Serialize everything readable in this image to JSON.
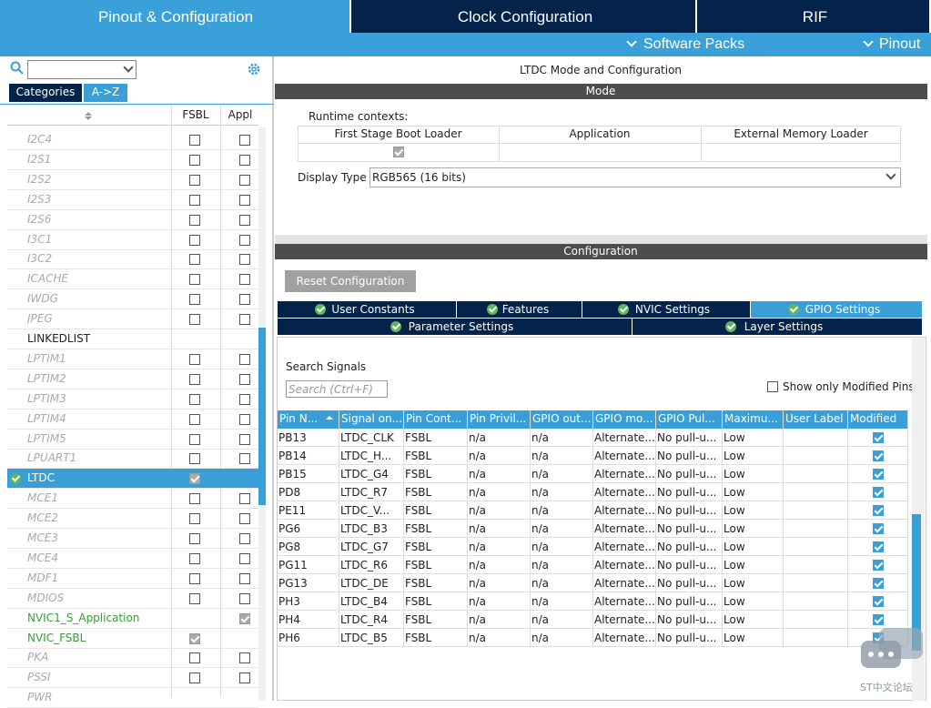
{
  "top_tabs": [
    "Pinout & Configuration",
    "Clock Configuration",
    "RIF"
  ],
  "sub_menu": [
    "Software Packs",
    "Pinout"
  ],
  "left_panel": {
    "tabs": [
      "Categories",
      "A->Z"
    ],
    "columns": [
      "FSBL",
      "Appl"
    ],
    "items": [
      {
        "name": "I2C4",
        "state": "disabled",
        "fsbl": false,
        "appl": false
      },
      {
        "name": "I2S1",
        "state": "disabled",
        "fsbl": false,
        "appl": false
      },
      {
        "name": "I2S2",
        "state": "disabled",
        "fsbl": false,
        "appl": false
      },
      {
        "name": "I2S3",
        "state": "disabled",
        "fsbl": false,
        "appl": false
      },
      {
        "name": "I2S6",
        "state": "disabled",
        "fsbl": false,
        "appl": false
      },
      {
        "name": "I3C1",
        "state": "disabled",
        "fsbl": false,
        "appl": false
      },
      {
        "name": "I3C2",
        "state": "disabled",
        "fsbl": false,
        "appl": false
      },
      {
        "name": "ICACHE",
        "state": "disabled",
        "fsbl": false,
        "appl": false
      },
      {
        "name": "IWDG",
        "state": "disabled",
        "fsbl": false,
        "appl": false
      },
      {
        "name": "JPEG",
        "state": "disabled",
        "fsbl": false,
        "appl": false
      },
      {
        "name": "LINKEDLIST",
        "state": "normal",
        "fsbl": null,
        "appl": null
      },
      {
        "name": "LPTIM1",
        "state": "disabled",
        "fsbl": false,
        "appl": false
      },
      {
        "name": "LPTIM2",
        "state": "disabled",
        "fsbl": false,
        "appl": false
      },
      {
        "name": "LPTIM3",
        "state": "disabled",
        "fsbl": false,
        "appl": false
      },
      {
        "name": "LPTIM4",
        "state": "disabled",
        "fsbl": false,
        "appl": false
      },
      {
        "name": "LPTIM5",
        "state": "disabled",
        "fsbl": false,
        "appl": false
      },
      {
        "name": "LPUART1",
        "state": "disabled",
        "fsbl": false,
        "appl": false
      },
      {
        "name": "LTDC",
        "state": "selected",
        "fsbl": true,
        "appl": null
      },
      {
        "name": "MCE1",
        "state": "disabled",
        "fsbl": false,
        "appl": false
      },
      {
        "name": "MCE2",
        "state": "disabled",
        "fsbl": false,
        "appl": false
      },
      {
        "name": "MCE3",
        "state": "disabled",
        "fsbl": false,
        "appl": false
      },
      {
        "name": "MCE4",
        "state": "disabled",
        "fsbl": false,
        "appl": false
      },
      {
        "name": "MDF1",
        "state": "disabled",
        "fsbl": false,
        "appl": false
      },
      {
        "name": "MDIOS",
        "state": "disabled",
        "fsbl": false,
        "appl": false
      },
      {
        "name": "NVIC1_S_Application",
        "state": "enabled",
        "fsbl": null,
        "appl": true
      },
      {
        "name": "NVIC_FSBL",
        "state": "enabled",
        "fsbl": true,
        "appl": null
      },
      {
        "name": "PKA",
        "state": "disabled",
        "fsbl": false,
        "appl": false
      },
      {
        "name": "PSSI",
        "state": "disabled",
        "fsbl": false,
        "appl": false
      },
      {
        "name": "PWR",
        "state": "disabled",
        "fsbl": null,
        "appl": null
      }
    ]
  },
  "right_panel": {
    "title": "LTDC Mode and Configuration",
    "mode_header": "Mode",
    "runtime_label": "Runtime contexts:",
    "contexts": [
      {
        "name": "First Stage Boot Loader",
        "checked": true
      },
      {
        "name": "Application",
        "checked": null
      },
      {
        "name": "External Memory Loader",
        "checked": null
      }
    ],
    "display_type_label": "Display Type",
    "display_type_value": "RGB565 (16 bits)",
    "config_header": "Configuration",
    "reset_button": "Reset Configuration",
    "tabs": [
      [
        {
          "label": "User Constants",
          "active": false
        },
        {
          "label": "Features",
          "active": false
        },
        {
          "label": "NVIC Settings",
          "active": false
        },
        {
          "label": "GPIO Settings",
          "active": true
        }
      ],
      [
        {
          "label": "Parameter Settings",
          "active": false
        },
        {
          "label": "Layer Settings",
          "active": false
        }
      ]
    ],
    "search_label": "Search Signals",
    "search_placeholder": "Search (Ctrl+F)",
    "modified_only_label": "Show only Modified Pins",
    "table": {
      "headers": [
        "Pin N...",
        "Signal on...",
        "Pin Cont...",
        "Pin Privil...",
        "GPIO out...",
        "GPIO mo...",
        "GPIO Pul...",
        "Maximu...",
        "User Label",
        "Modified"
      ],
      "rows": [
        {
          "cells": [
            "PB13",
            "LTDC_CLK",
            "FSBL",
            "n/a",
            "n/a",
            "Alternate...",
            "No pull-u...",
            "Low",
            ""
          ],
          "modified": true
        },
        {
          "cells": [
            "PB14",
            "LTDC_H...",
            "FSBL",
            "n/a",
            "n/a",
            "Alternate...",
            "No pull-u...",
            "Low",
            ""
          ],
          "modified": true
        },
        {
          "cells": [
            "PB15",
            "LTDC_G4",
            "FSBL",
            "n/a",
            "n/a",
            "Alternate...",
            "No pull-u...",
            "Low",
            ""
          ],
          "modified": true
        },
        {
          "cells": [
            "PD8",
            "LTDC_R7",
            "FSBL",
            "n/a",
            "n/a",
            "Alternate...",
            "No pull-u...",
            "Low",
            ""
          ],
          "modified": true
        },
        {
          "cells": [
            "PE11",
            "LTDC_V...",
            "FSBL",
            "n/a",
            "n/a",
            "Alternate...",
            "No pull-u...",
            "Low",
            ""
          ],
          "modified": true
        },
        {
          "cells": [
            "PG6",
            "LTDC_B3",
            "FSBL",
            "n/a",
            "n/a",
            "Alternate...",
            "No pull-u...",
            "Low",
            ""
          ],
          "modified": true
        },
        {
          "cells": [
            "PG8",
            "LTDC_G7",
            "FSBL",
            "n/a",
            "n/a",
            "Alternate...",
            "No pull-u...",
            "Low",
            ""
          ],
          "modified": true
        },
        {
          "cells": [
            "PG11",
            "LTDC_R6",
            "FSBL",
            "n/a",
            "n/a",
            "Alternate...",
            "No pull-u...",
            "Low",
            ""
          ],
          "modified": true
        },
        {
          "cells": [
            "PG13",
            "LTDC_DE",
            "FSBL",
            "n/a",
            "n/a",
            "Alternate...",
            "No pull-u...",
            "Low",
            ""
          ],
          "modified": true
        },
        {
          "cells": [
            "PH3",
            "LTDC_B4",
            "FSBL",
            "n/a",
            "n/a",
            "Alternate...",
            "No pull-u...",
            "Low",
            ""
          ],
          "modified": true
        },
        {
          "cells": [
            "PH4",
            "LTDC_R4",
            "FSBL",
            "n/a",
            "n/a",
            "Alternate...",
            "No pull-u...",
            "Low",
            ""
          ],
          "modified": true
        },
        {
          "cells": [
            "PH6",
            "LTDC_B5",
            "FSBL",
            "n/a",
            "n/a",
            "Alternate...",
            "No pull-u...",
            "Low",
            ""
          ],
          "modified": true
        }
      ]
    }
  },
  "watermark": "ST中文论坛"
}
